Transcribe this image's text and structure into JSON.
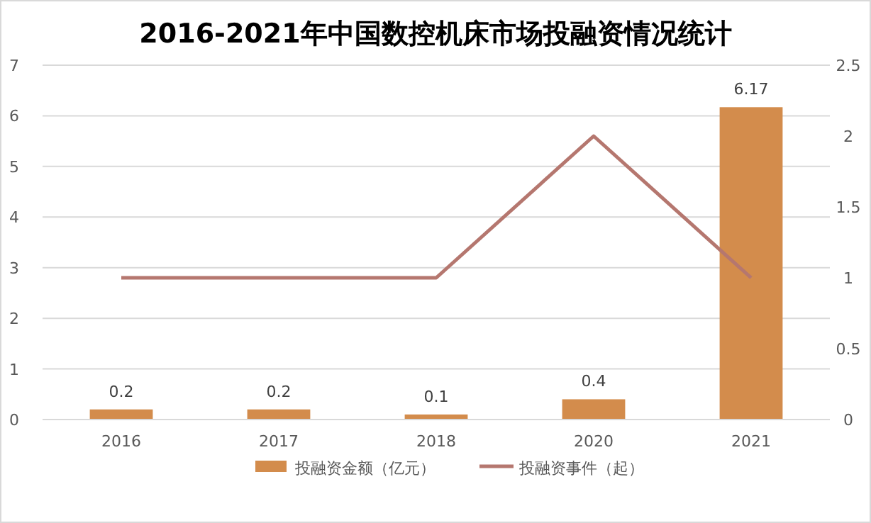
{
  "chart_data": {
    "type": "bar",
    "title": "2016-2021年中国数控机床市场投融资情况统计",
    "categories": [
      "2016",
      "2017",
      "2018",
      "2020",
      "2021"
    ],
    "series": [
      {
        "name": "投融资金额（亿元）",
        "color": "#d38c4c",
        "values": [
          0.2,
          0.2,
          0.1,
          0.4,
          6.17
        ],
        "value_labels": [
          "0.2",
          "0.2",
          "0.1",
          "0.4",
          "6.17"
        ]
      },
      {
        "name": "投融资事件（起）",
        "type": "line",
        "axis": "y2",
        "color": "#b5776f",
        "values": [
          1,
          1,
          1,
          2,
          1
        ]
      }
    ],
    "ylim": [
      0,
      7
    ],
    "yticks": [
      0,
      1,
      2,
      3,
      4,
      5,
      6,
      7
    ],
    "y2lim": [
      0,
      2.5
    ],
    "y2ticks": [
      0,
      0.5,
      1,
      1.5,
      2,
      2.5
    ],
    "grid": "y",
    "legend": "bottom",
    "marker": "none"
  }
}
